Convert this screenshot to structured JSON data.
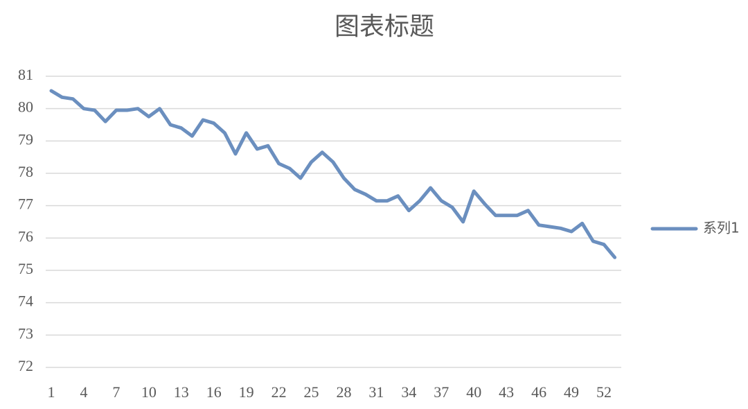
{
  "chart_data": {
    "type": "line",
    "title": "图表标题",
    "categories": [
      1,
      null,
      null,
      4,
      null,
      null,
      7,
      null,
      null,
      10,
      null,
      null,
      13,
      null,
      null,
      16,
      null,
      null,
      19,
      null,
      null,
      22,
      null,
      null,
      25,
      null,
      null,
      28,
      null,
      null,
      31,
      null,
      null,
      34,
      null,
      null,
      37,
      null,
      null,
      40,
      null,
      null,
      43,
      null,
      null,
      46,
      null,
      null,
      49,
      null,
      null,
      52,
      null
    ],
    "series": [
      {
        "name": "系列1",
        "color": "#6b8fbf",
        "values": [
          80.55,
          80.35,
          80.3,
          80.0,
          79.95,
          79.6,
          79.95,
          79.95,
          80.0,
          79.75,
          80.0,
          79.5,
          79.4,
          79.15,
          79.65,
          79.55,
          79.25,
          78.6,
          79.25,
          78.75,
          78.85,
          78.3,
          78.15,
          77.85,
          78.35,
          78.65,
          78.35,
          77.85,
          77.5,
          77.35,
          77.15,
          77.15,
          77.3,
          76.85,
          77.15,
          77.55,
          77.15,
          76.95,
          76.5,
          77.45,
          77.05,
          76.7,
          76.7,
          76.7,
          76.85,
          76.4,
          76.35,
          76.3,
          76.2,
          76.45,
          75.9,
          75.8,
          75.4
        ]
      }
    ],
    "ylim": [
      72,
      81
    ],
    "yticks": [
      72,
      73,
      74,
      75,
      76,
      77,
      78,
      79,
      80,
      81
    ],
    "grid": true,
    "legend": "right"
  }
}
